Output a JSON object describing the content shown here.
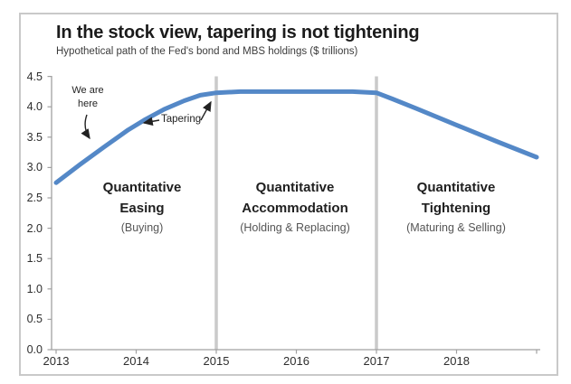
{
  "chart_data": {
    "type": "line",
    "title": "In the stock view, tapering is not tightening",
    "subtitle": "Hypothetical path of the Fed's bond and MBS holdings ($ trillions)",
    "xlabel": "",
    "ylabel": "",
    "xlim": [
      2013,
      2019
    ],
    "ylim": [
      0,
      4.5
    ],
    "grid": false,
    "legend": "none",
    "line_color": "#5488C7",
    "divider_color": "#cacaca",
    "axis_color": "#a0a0a0",
    "x_ticks": [
      "2013",
      "2014",
      "2015",
      "2016",
      "2017",
      "2018"
    ],
    "y_ticks": [
      "0.0",
      "0.5",
      "1.0",
      "1.5",
      "2.0",
      "2.5",
      "3.0",
      "3.5",
      "4.0",
      "4.5"
    ],
    "series": [
      {
        "name": "Fed bond and MBS holdings",
        "points": [
          [
            2013.0,
            2.75
          ],
          [
            2013.3,
            3.05
          ],
          [
            2013.6,
            3.34
          ],
          [
            2013.9,
            3.62
          ],
          [
            2014.1,
            3.78
          ],
          [
            2014.35,
            3.96
          ],
          [
            2014.6,
            4.1
          ],
          [
            2014.8,
            4.19
          ],
          [
            2015.0,
            4.23
          ],
          [
            2015.3,
            4.25
          ],
          [
            2016.0,
            4.25
          ],
          [
            2016.7,
            4.25
          ],
          [
            2017.0,
            4.23
          ],
          [
            2017.2,
            4.13
          ],
          [
            2017.5,
            3.97
          ],
          [
            2018.0,
            3.7
          ],
          [
            2018.5,
            3.43
          ],
          [
            2019.0,
            3.17
          ]
        ]
      }
    ],
    "dividers": [
      2015,
      2017
    ],
    "annotations": [
      {
        "id": "we-are-here",
        "text": "We are here",
        "target": {
          "x": 2013.45,
          "y": 3.45
        }
      },
      {
        "id": "tapering",
        "text": "Tapering",
        "targets": [
          {
            "x": 2014.05,
            "y": 3.72
          },
          {
            "x": 2014.95,
            "y": 4.2
          }
        ]
      }
    ],
    "phases": [
      {
        "line1": "Quantitative",
        "line2": "Easing",
        "sub": "(Buying)"
      },
      {
        "line1": "Quantitative",
        "line2": "Accommodation",
        "sub": "(Holding & Replacing)"
      },
      {
        "line1": "Quantitative",
        "line2": "Tightening",
        "sub": "(Maturing & Selling)"
      }
    ]
  }
}
